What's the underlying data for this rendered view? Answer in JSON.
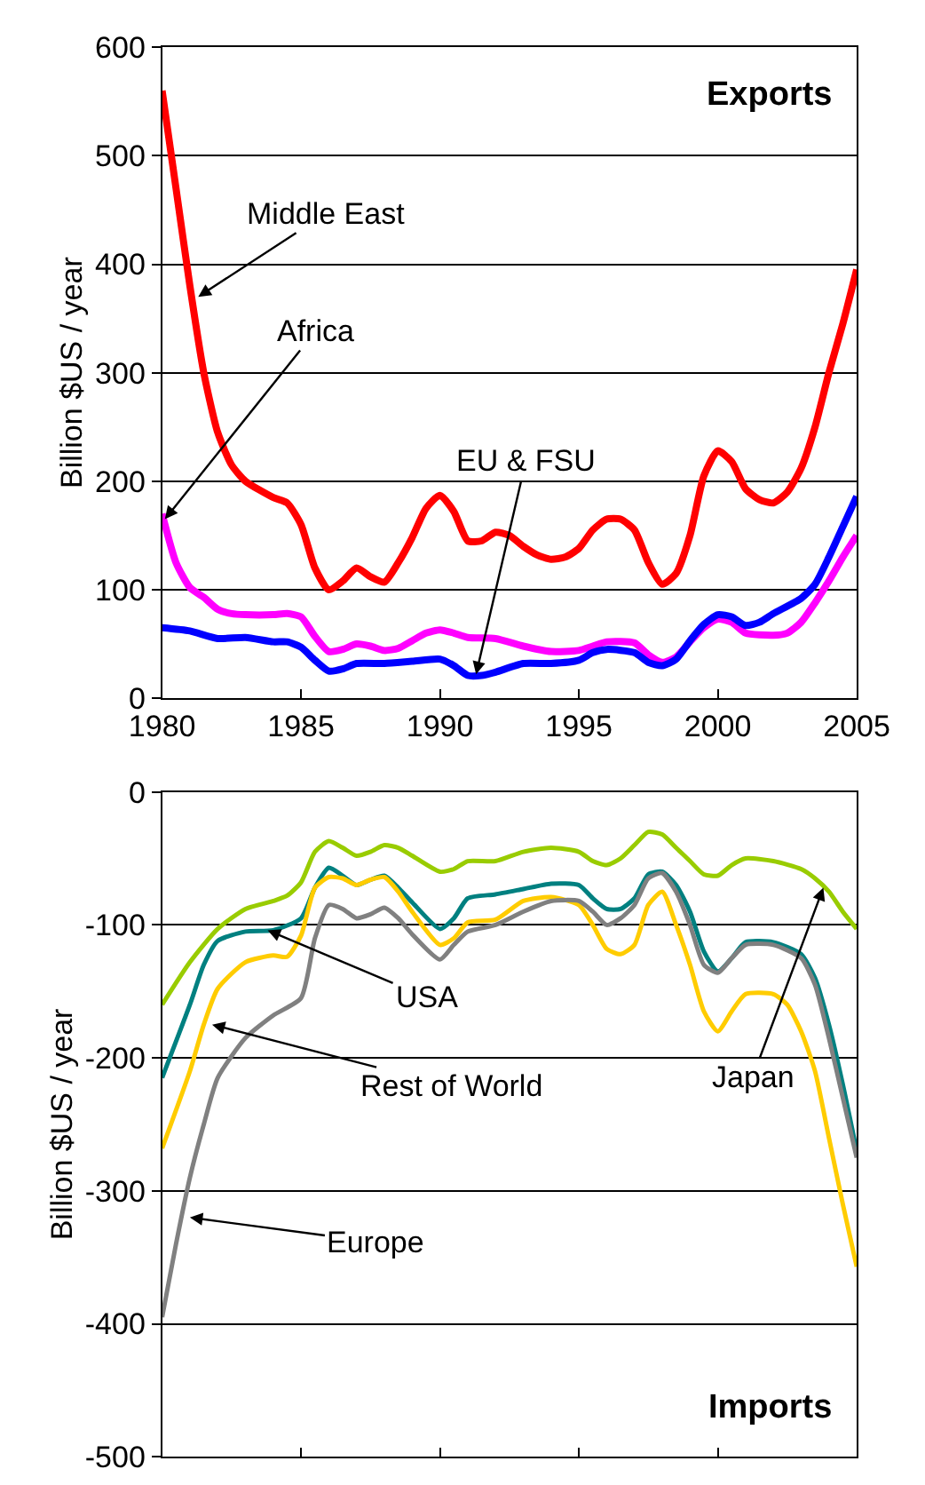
{
  "chart_data": [
    {
      "type": "line",
      "ylabel": "Billion $US / year",
      "xlim": [
        1980,
        2005
      ],
      "xticks": [
        1980,
        1985,
        1990,
        1995,
        2000,
        2005
      ],
      "ylim": [
        0,
        600
      ],
      "yticks": [
        0,
        100,
        200,
        300,
        400,
        500,
        600
      ],
      "grid": "y",
      "marker": "none",
      "line_style": "solid",
      "annotations": [
        "Exports",
        {
          "text": "Middle East",
          "x": 1981.3,
          "y": 370
        },
        {
          "text": "Africa",
          "x": 1980.1,
          "y": 165
        },
        {
          "text": "EU & FSU",
          "x": 1991.3,
          "y": 22
        }
      ],
      "series": [
        {
          "color": "#ff0000",
          "x": [
            1980,
            1980.5,
            1981,
            1981.5,
            1982,
            1982.5,
            1983,
            1984,
            1984.5,
            1985,
            1985.5,
            1986,
            1986.5,
            1987,
            1987.5,
            1988,
            1988.5,
            1989,
            1989.5,
            1990,
            1990.5,
            1991,
            1991.5,
            1992,
            1992.5,
            1993,
            1993.5,
            1994,
            1994.5,
            1995,
            1995.5,
            1996,
            1996.5,
            1997,
            1997.5,
            1998,
            1998.5,
            1999,
            1999.5,
            2000,
            2000.5,
            2001,
            2001.5,
            2002,
            2002.5,
            2003,
            2003.5,
            2004,
            2004.5,
            2005
          ],
          "values": [
            560,
            470,
            380,
            300,
            245,
            215,
            200,
            185,
            180,
            160,
            120,
            100,
            108,
            120,
            112,
            107,
            125,
            148,
            175,
            187,
            172,
            145,
            145,
            153,
            150,
            140,
            132,
            128,
            130,
            138,
            155,
            165,
            165,
            155,
            125,
            105,
            115,
            150,
            205,
            228,
            218,
            193,
            183,
            180,
            190,
            212,
            250,
            300,
            345,
            395
          ]
        },
        {
          "color": "#ff00ff",
          "x": [
            1980,
            1980.5,
            1981,
            1981.5,
            1982,
            1982.5,
            1983,
            1984,
            1984.5,
            1985,
            1985.5,
            1986,
            1986.5,
            1987,
            1987.5,
            1988,
            1988.5,
            1989,
            1989.5,
            1990,
            1990.5,
            1991,
            1992,
            1993,
            1994,
            1995,
            1995.5,
            1996,
            1997,
            1997.5,
            1998,
            1998.5,
            1999,
            1999.5,
            2000,
            2000.5,
            2001,
            2002,
            2002.5,
            2003,
            2003.5,
            2004,
            2004.5,
            2005
          ],
          "values": [
            170,
            125,
            102,
            93,
            82,
            78,
            77,
            77,
            78,
            75,
            57,
            43,
            45,
            50,
            48,
            44,
            46,
            53,
            60,
            63,
            60,
            56,
            55,
            48,
            43,
            44,
            48,
            52,
            51,
            40,
            33,
            38,
            52,
            65,
            73,
            70,
            60,
            58,
            60,
            70,
            88,
            108,
            130,
            150
          ]
        },
        {
          "color": "#0000ff",
          "x": [
            1980,
            1981,
            1982,
            1983,
            1984,
            1984.5,
            1985,
            1985.5,
            1986,
            1986.5,
            1987,
            1988,
            1989,
            1990,
            1990.5,
            1991,
            1991.5,
            1992,
            1993,
            1994,
            1995,
            1995.5,
            1996,
            1997,
            1997.5,
            1998,
            1998.5,
            1999,
            1999.5,
            2000,
            2000.5,
            2001,
            2001.5,
            2002,
            2003,
            2003.5,
            2004,
            2004.5,
            2005
          ],
          "values": [
            65,
            62,
            55,
            56,
            52,
            52,
            47,
            35,
            25,
            27,
            32,
            32,
            34,
            36,
            30,
            21,
            21,
            24,
            32,
            32,
            35,
            42,
            45,
            42,
            33,
            30,
            36,
            53,
            68,
            77,
            75,
            67,
            70,
            78,
            92,
            105,
            130,
            158,
            186
          ]
        }
      ]
    },
    {
      "type": "line",
      "ylabel": "Billion $US / year",
      "xlim": [
        1980,
        2005
      ],
      "xticks": [
        1980,
        1985,
        1990,
        1995,
        2000,
        2005
      ],
      "ylim": [
        -500,
        0
      ],
      "yticks": [
        -500,
        -400,
        -300,
        -200,
        -100,
        0
      ],
      "grid": "y",
      "marker": "none",
      "line_style": "solid",
      "tick_labels": "y",
      "annotations": [
        "Imports",
        {
          "text": "USA",
          "x": 1983.8,
          "y": -104
        },
        {
          "text": "Rest of World",
          "x": 1981.8,
          "y": -175
        },
        {
          "text": "Europe",
          "x": 1981,
          "y": -320
        },
        {
          "text": "Japan",
          "x": 2003.8,
          "y": -72
        }
      ],
      "series": [
        {
          "color": "#99cc00",
          "x": [
            1980,
            1981,
            1982,
            1983,
            1984,
            1984.5,
            1985,
            1985.5,
            1986,
            1986.5,
            1987,
            1987.5,
            1988,
            1988.5,
            1989,
            1990,
            1990.5,
            1991,
            1992,
            1993,
            1994,
            1995,
            1995.5,
            1996,
            1996.5,
            1997,
            1997.5,
            1998,
            1998.5,
            1999,
            1999.5,
            2000,
            2000.5,
            2001,
            2002,
            2003,
            2003.5,
            2004,
            2004.5,
            2005
          ],
          "values": [
            -160,
            -128,
            -103,
            -88,
            -82,
            -78,
            -68,
            -45,
            -37,
            -42,
            -48,
            -45,
            -40,
            -42,
            -48,
            -60,
            -58,
            -52,
            -52,
            -45,
            -42,
            -45,
            -52,
            -55,
            -50,
            -40,
            -30,
            -32,
            -42,
            -52,
            -62,
            -63,
            -55,
            -50,
            -52,
            -58,
            -65,
            -75,
            -90,
            -103
          ]
        },
        {
          "color": "#008080",
          "x": [
            1980,
            1981,
            1981.5,
            1982,
            1983,
            1984,
            1985,
            1985.5,
            1986,
            1986.5,
            1987,
            1987.5,
            1988,
            1988.5,
            1989,
            1990,
            1990.5,
            1991,
            1992,
            1993,
            1994,
            1995,
            1995.5,
            1996,
            1996.5,
            1997,
            1997.5,
            1998,
            1998.5,
            1999,
            1999.5,
            2000,
            2000.5,
            2001,
            2002,
            2003,
            2003.5,
            2004,
            2004.5,
            2005
          ],
          "values": [
            -215,
            -160,
            -130,
            -112,
            -105,
            -104,
            -95,
            -72,
            -57,
            -63,
            -70,
            -66,
            -63,
            -72,
            -83,
            -103,
            -95,
            -80,
            -77,
            -73,
            -69,
            -70,
            -80,
            -88,
            -88,
            -80,
            -62,
            -60,
            -70,
            -90,
            -120,
            -135,
            -125,
            -113,
            -113,
            -122,
            -140,
            -175,
            -220,
            -270
          ]
        },
        {
          "color": "#ffcc00",
          "x": [
            1980,
            1981,
            1981.5,
            1982,
            1983,
            1984,
            1984.5,
            1985,
            1985.5,
            1986,
            1986.5,
            1987,
            1987.5,
            1988,
            1988.5,
            1989,
            1990,
            1990.5,
            1991,
            1992,
            1993,
            1994,
            1995,
            1995.5,
            1996,
            1996.5,
            1997,
            1997.5,
            1998,
            1998.5,
            1999,
            1999.5,
            2000,
            2000.5,
            2001,
            2002,
            2002.5,
            2003,
            2003.5,
            2004,
            2004.5,
            2005
          ],
          "values": [
            -268,
            -210,
            -175,
            -148,
            -128,
            -123,
            -124,
            -108,
            -72,
            -64,
            -65,
            -70,
            -66,
            -64,
            -75,
            -90,
            -115,
            -110,
            -98,
            -96,
            -82,
            -79,
            -85,
            -100,
            -118,
            -122,
            -115,
            -85,
            -75,
            -100,
            -130,
            -165,
            -180,
            -165,
            -152,
            -152,
            -160,
            -180,
            -210,
            -260,
            -310,
            -357
          ]
        },
        {
          "color": "#808080",
          "x": [
            1980,
            1980.5,
            1981,
            1981.5,
            1982,
            1983,
            1984,
            1985,
            1985.5,
            1986,
            1986.5,
            1987,
            1987.5,
            1988,
            1988.5,
            1989,
            1990,
            1990.5,
            1991,
            1992,
            1993,
            1994,
            1995,
            1995.5,
            1996,
            1996.5,
            1997,
            1997.5,
            1998,
            1998.5,
            1999,
            1999.5,
            2000,
            2000.5,
            2001,
            2002,
            2003,
            2003.5,
            2004,
            2004.5,
            2005
          ],
          "values": [
            -395,
            -340,
            -290,
            -250,
            -215,
            -185,
            -168,
            -155,
            -110,
            -85,
            -88,
            -95,
            -92,
            -87,
            -95,
            -107,
            -126,
            -115,
            -105,
            -100,
            -90,
            -82,
            -82,
            -90,
            -100,
            -95,
            -85,
            -65,
            -61,
            -75,
            -100,
            -130,
            -136,
            -125,
            -115,
            -115,
            -125,
            -145,
            -185,
            -230,
            -275
          ]
        }
      ]
    }
  ]
}
